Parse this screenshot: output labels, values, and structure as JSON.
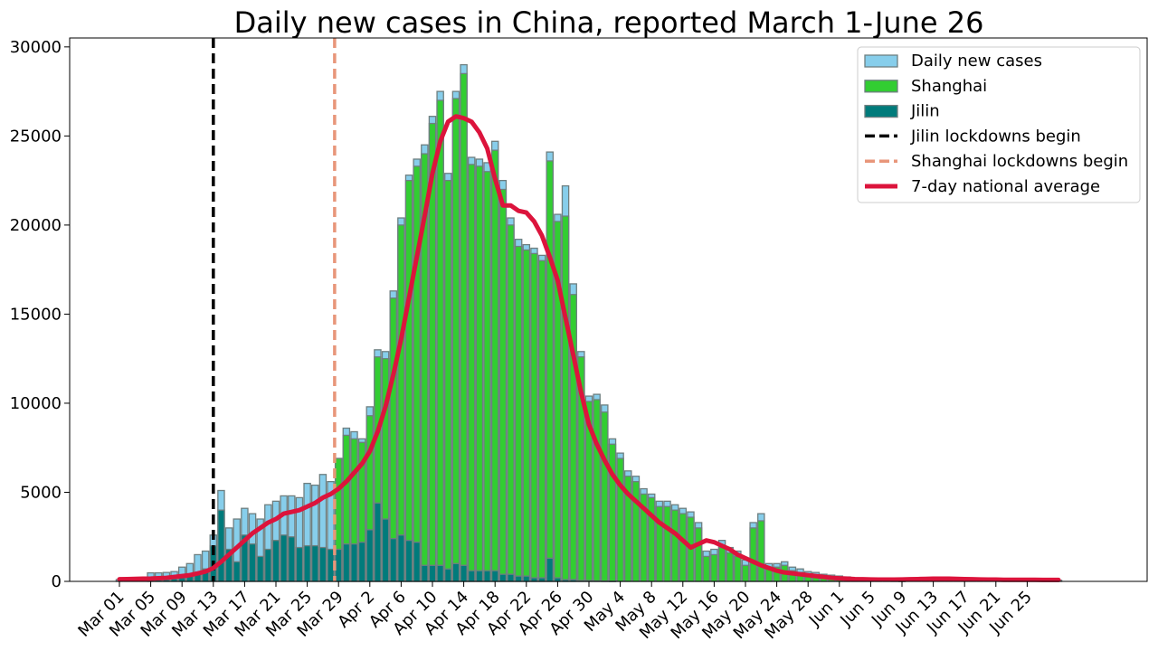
{
  "chart_data": {
    "type": "bar",
    "title": "Daily new cases in China, reported March 1-June 26",
    "xlabel": "",
    "ylabel": "",
    "ylim": [
      0,
      30500
    ],
    "yticks": [
      0,
      5000,
      10000,
      15000,
      20000,
      25000,
      30000
    ],
    "start_date": "2022-03-01",
    "xtick_labels": [
      "Mar 01",
      "Mar 05",
      "Mar 09",
      "Mar 13",
      "Mar 17",
      "Mar 21",
      "Mar 25",
      "Mar 29",
      "Apr 2",
      "Apr 6",
      "Apr 10",
      "Apr 14",
      "Apr 18",
      "Apr 22",
      "Apr 26",
      "Apr 30",
      "May 4",
      "May 8",
      "May 12",
      "May 16",
      "May 20",
      "May 24",
      "May 28",
      "Jun 1",
      "Jun 5",
      "Jun 9",
      "Jun 13",
      "Jun 17",
      "Jun 21",
      "Jun 25"
    ],
    "legend_placement": "top-right",
    "grid": false,
    "colors": {
      "national": "#87ceeb",
      "shanghai": "#32cd32",
      "jilin": "#007b7b",
      "bar_edge": "#6e7f80",
      "avg_line": "#dc143c",
      "jilin_lockdown": "#000000",
      "shanghai_lockdown": "#e8967a"
    },
    "series": [
      {
        "name": "Daily new cases",
        "values": [
          100,
          120,
          130,
          200,
          480,
          480,
          500,
          550,
          800,
          1000,
          1500,
          1700,
          2600,
          5100,
          3000,
          3500,
          4100,
          3800,
          3500,
          4300,
          4500,
          4800,
          4800,
          4700,
          5500,
          5400,
          6000,
          5600,
          6900,
          8600,
          8400,
          8000,
          9800,
          13000,
          12900,
          16300,
          20400,
          22800,
          23700,
          24500,
          26100,
          27500,
          22900,
          27500,
          29000,
          23800,
          23700,
          23500,
          24700,
          22500,
          20400,
          19200,
          18900,
          18700,
          18300,
          24100,
          20600,
          22200,
          16700,
          12900,
          10400,
          10500,
          9900,
          8000,
          7200,
          6200,
          5900,
          5200,
          4900,
          4500,
          4500,
          4300,
          4100,
          3900,
          3300,
          1700,
          1800,
          2300,
          1900,
          1700,
          1200,
          3300,
          3800,
          1000,
          1000,
          1100,
          800,
          700,
          550,
          500,
          400,
          350,
          300,
          250,
          200,
          150,
          150,
          120,
          100,
          100,
          90,
          80,
          80,
          70,
          70,
          80,
          90,
          100,
          100,
          110,
          120,
          110,
          100,
          100,
          90,
          80,
          70,
          70,
          60,
          60,
          60
        ],
        "legend_label": "Daily new cases"
      },
      {
        "name": "Shanghai",
        "values": [
          0,
          0,
          0,
          0,
          0,
          0,
          0,
          0,
          0,
          0,
          0,
          0,
          0,
          0,
          0,
          0,
          0,
          0,
          0,
          0,
          0,
          0,
          0,
          0,
          0,
          0,
          0,
          0,
          6900,
          8200,
          8000,
          7800,
          9300,
          12600,
          12500,
          15900,
          20000,
          22500,
          23300,
          24000,
          25700,
          27000,
          22500,
          27100,
          28500,
          23400,
          23300,
          23000,
          24200,
          22000,
          20000,
          18800,
          18600,
          18400,
          18000,
          23600,
          20200,
          20500,
          16100,
          12600,
          10100,
          10200,
          9500,
          7700,
          6900,
          5900,
          5600,
          4900,
          4700,
          4200,
          4200,
          4000,
          3800,
          3600,
          3000,
          1400,
          1500,
          1900,
          1600,
          1400,
          900,
          3000,
          3400,
          800,
          800,
          900,
          600,
          500,
          400,
          350,
          250,
          200,
          150,
          120,
          100,
          60,
          50,
          40,
          30,
          20,
          10,
          0,
          0,
          0,
          0,
          0,
          0,
          0,
          0,
          0,
          0,
          0,
          0,
          0,
          0,
          0,
          0,
          0,
          0,
          0,
          0,
          0,
          0
        ],
        "legend_label": "Shanghai"
      },
      {
        "name": "Jilin",
        "values": [
          0,
          0,
          0,
          0,
          50,
          80,
          100,
          150,
          200,
          300,
          500,
          700,
          2000,
          4000,
          1800,
          1100,
          2600,
          2100,
          1400,
          1800,
          2300,
          2600,
          2500,
          1900,
          2000,
          2000,
          1900,
          1800,
          1800,
          2100,
          2100,
          2200,
          2900,
          4400,
          3500,
          2400,
          2600,
          2300,
          2200,
          900,
          900,
          900,
          700,
          1000,
          900,
          600,
          600,
          600,
          600,
          400,
          400,
          300,
          300,
          200,
          200,
          1300,
          200,
          100,
          100,
          50,
          50,
          30,
          20,
          10,
          0,
          0,
          0,
          0,
          0,
          0,
          0,
          0,
          0,
          0,
          0,
          0,
          0,
          0,
          0,
          0,
          0,
          0,
          0,
          0,
          0,
          0,
          0,
          0,
          0,
          0,
          0,
          0,
          0,
          0,
          0,
          0,
          0,
          0,
          0,
          0,
          0,
          0,
          0,
          0,
          0,
          0,
          0,
          0,
          0,
          0,
          0,
          0,
          0,
          0,
          0,
          0,
          0,
          0,
          0,
          0,
          0
        ],
        "legend_label": "Jilin"
      },
      {
        "name": "7-day national average",
        "type": "line",
        "values": [
          120,
          130,
          140,
          150,
          160,
          180,
          200,
          250,
          300,
          350,
          450,
          550,
          750,
          1100,
          1500,
          1900,
          2300,
          2700,
          3000,
          3300,
          3500,
          3800,
          3900,
          4000,
          4200,
          4400,
          4700,
          4900,
          5200,
          5600,
          6100,
          6600,
          7300,
          8400,
          9800,
          11600,
          13600,
          15900,
          18200,
          20500,
          22900,
          24700,
          25800,
          26100,
          26000,
          25800,
          25200,
          24300,
          22600,
          21100,
          21100,
          20800,
          20700,
          20200,
          19400,
          18200,
          16900,
          14800,
          12700,
          10600,
          8800,
          7700,
          6800,
          6000,
          5400,
          4900,
          4500,
          4100,
          3700,
          3300,
          3000,
          2700,
          2300,
          1900,
          2100,
          2300,
          2200,
          2000,
          1800,
          1500,
          1300,
          1100,
          900,
          750,
          600,
          500,
          450,
          400,
          350,
          300,
          250,
          200,
          170,
          150,
          130,
          120,
          110,
          100,
          100,
          100,
          110,
          120,
          130,
          140,
          150,
          150,
          150,
          140,
          130,
          120,
          110,
          100,
          100,
          90,
          90,
          90,
          90,
          90,
          80,
          80,
          80
        ],
        "legend_label": "7-day national average"
      }
    ],
    "vlines": [
      {
        "name": "Jilin lockdowns begin",
        "x_index": 12,
        "style": "dashed"
      },
      {
        "name": "Shanghai lockdowns begin",
        "x_index": 27.5,
        "style": "dashed"
      }
    ]
  }
}
